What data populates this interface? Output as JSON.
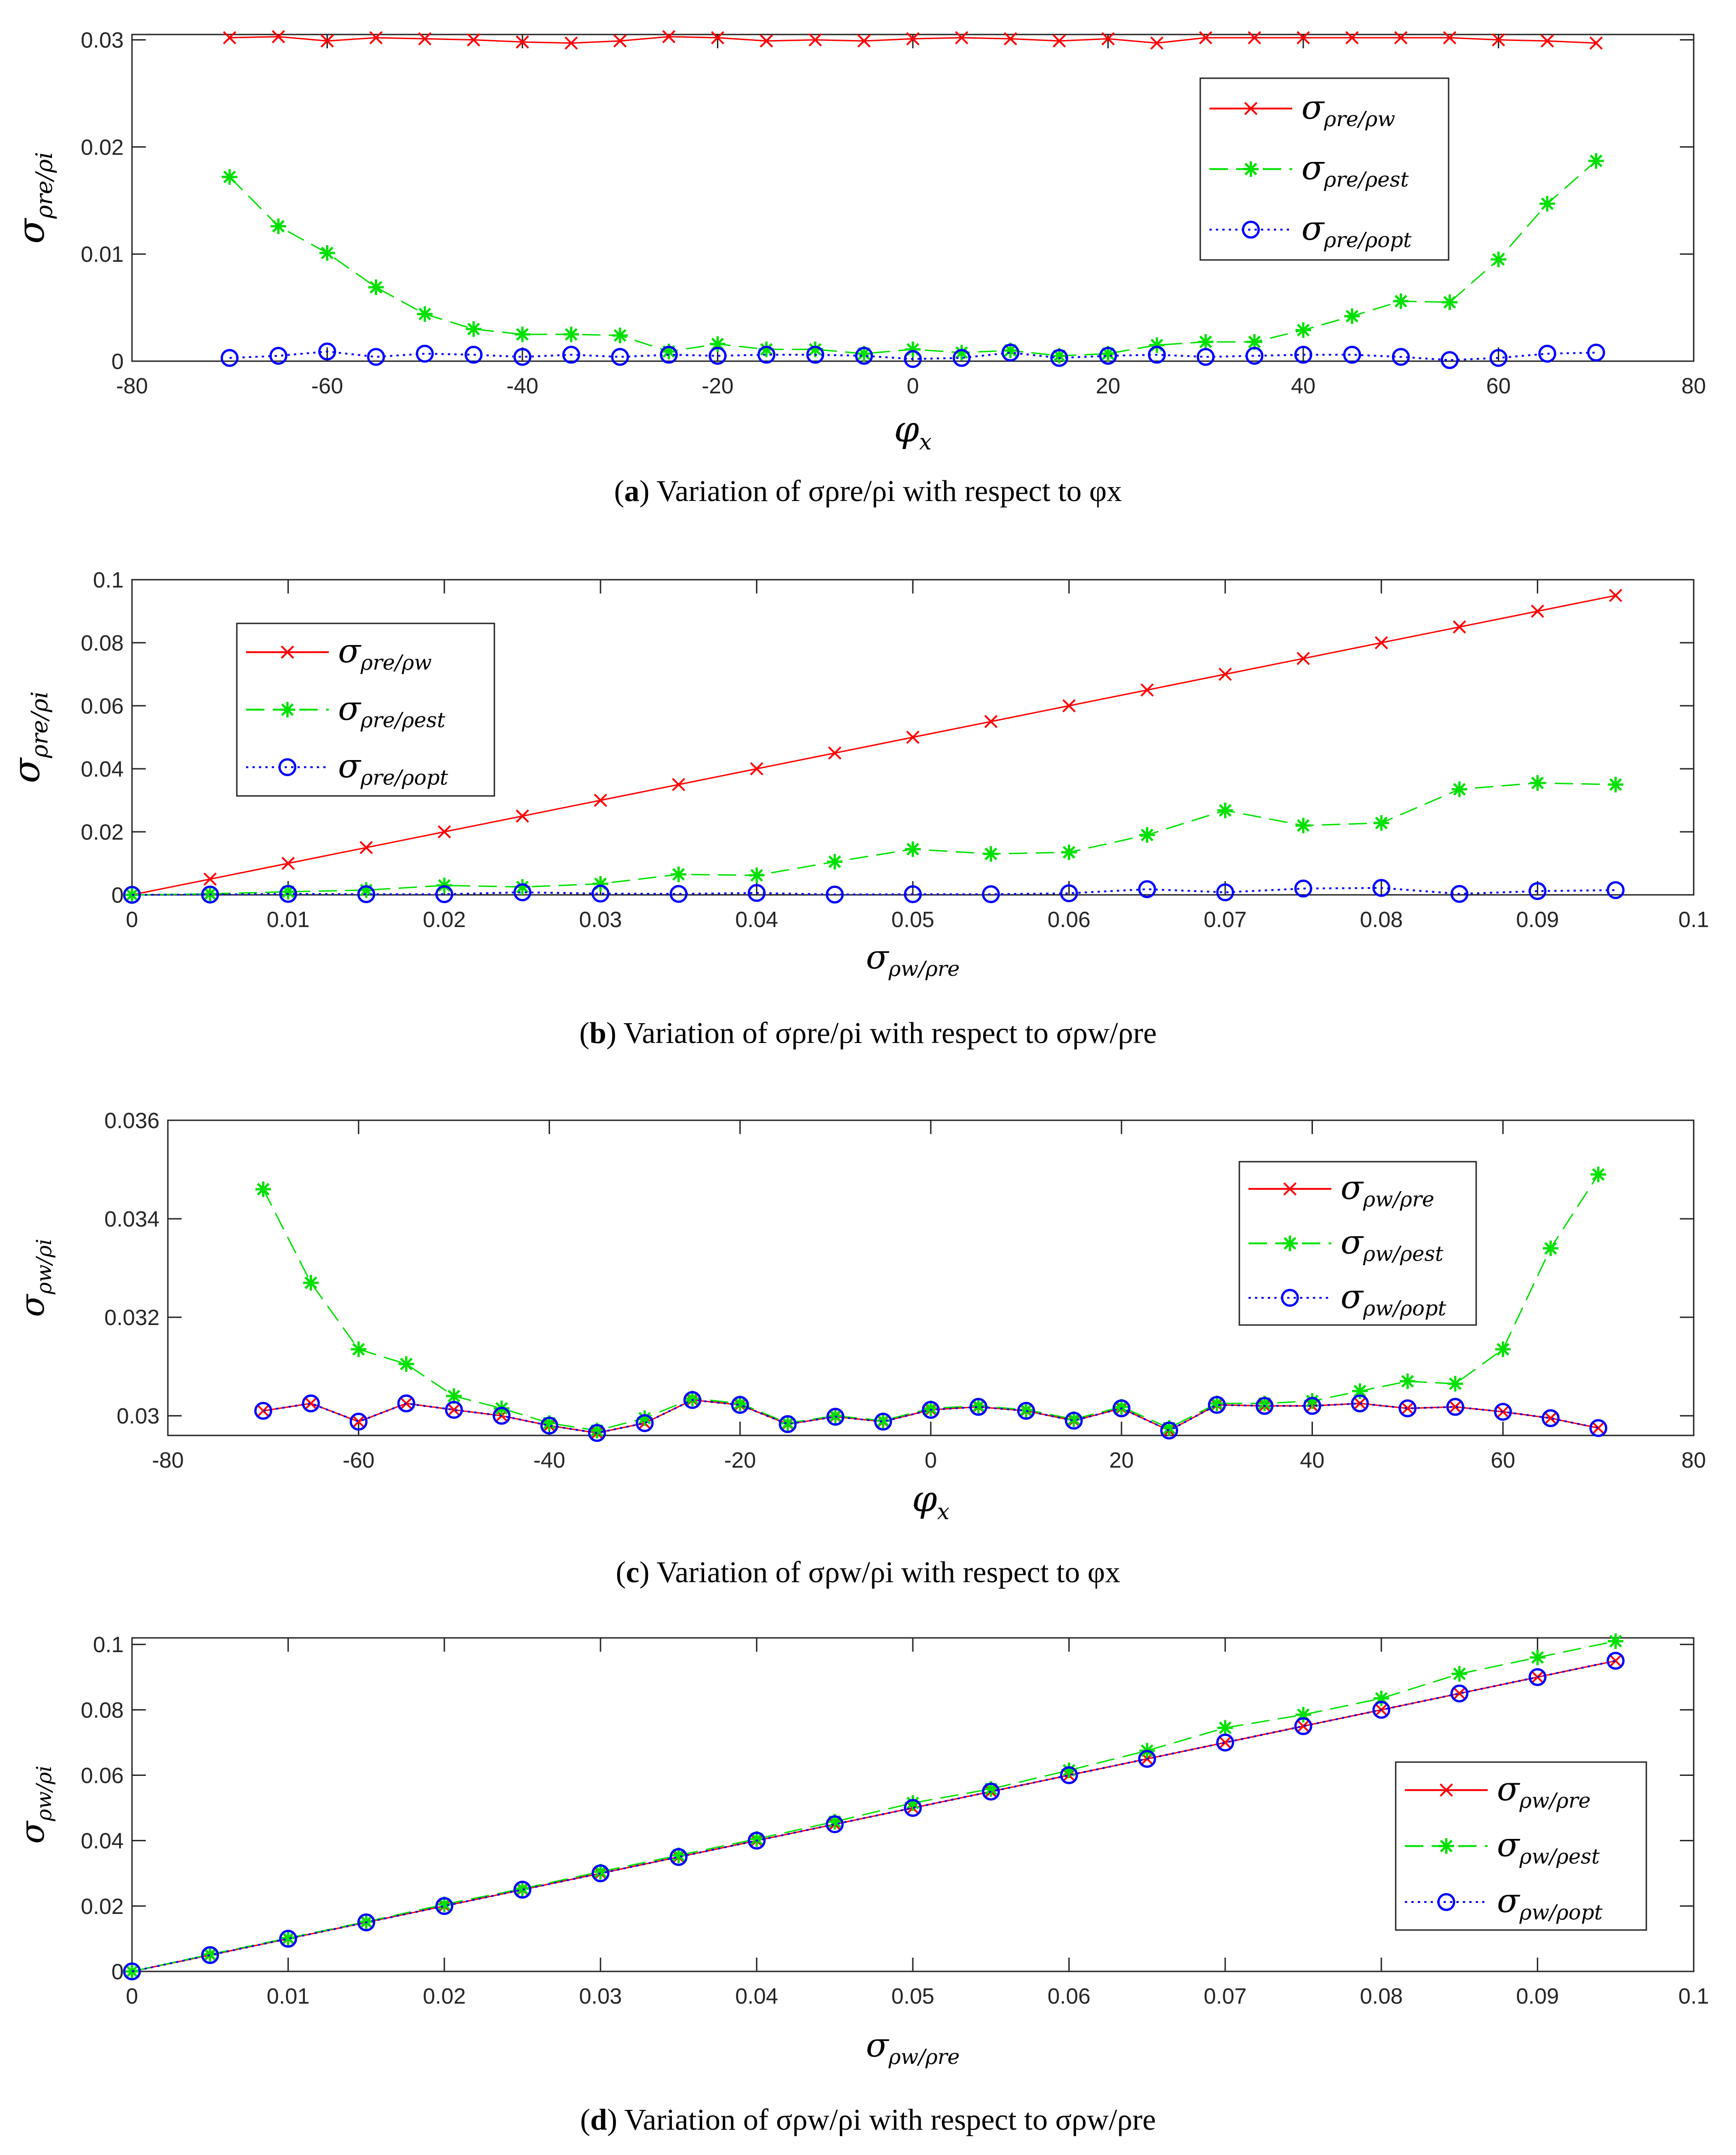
{
  "chart_data": [
    {
      "type": "line",
      "panel": "a",
      "caption_tag": "a",
      "caption": "Variation of σρre/ρi with respect to φx",
      "xlabel": "φx",
      "ylabel": "σρre/ρi",
      "xlim": [
        -80,
        80
      ],
      "ylim": [
        0,
        0.0305
      ],
      "xticks": [
        -80,
        -60,
        -40,
        -20,
        0,
        20,
        40,
        60,
        80
      ],
      "xtick_labels": [
        "-80",
        "-60",
        "-40",
        "-20",
        "0",
        "20",
        "40",
        "60",
        "80"
      ],
      "yticks": [
        0,
        0.01,
        0.02,
        0.03
      ],
      "ytick_labels": [
        "0",
        "0.01",
        "0.02",
        "0.03"
      ],
      "legend_location": "upper-right",
      "x": [
        -70,
        -65,
        -60,
        -55,
        -50,
        -45,
        -40,
        -35,
        -30,
        -25,
        -20,
        -15,
        -10,
        -5,
        0,
        5,
        10,
        15,
        20,
        25,
        30,
        35,
        40,
        45,
        50,
        55,
        60,
        65,
        70
      ],
      "series": [
        {
          "name": "σρre/ρw",
          "color": "#ff0000",
          "marker": "x",
          "dash": "solid",
          "values": [
            0.0302,
            0.0303,
            0.0299,
            0.0302,
            0.0301,
            0.03,
            0.0298,
            0.0297,
            0.0299,
            0.0303,
            0.0302,
            0.0299,
            0.03,
            0.0299,
            0.0301,
            0.0302,
            0.0301,
            0.0299,
            0.0301,
            0.0297,
            0.0302,
            0.0302,
            0.0302,
            0.0302,
            0.0302,
            0.0302,
            0.03,
            0.0299,
            0.0297
          ]
        },
        {
          "name": "σρre/ρest",
          "color": "#00e000",
          "marker": "*",
          "dash": "dashed",
          "values": [
            0.0172,
            0.0126,
            0.0101,
            0.0069,
            0.0044,
            0.003,
            0.0025,
            0.0025,
            0.0024,
            0.0009,
            0.0016,
            0.0011,
            0.0011,
            0.0007,
            0.0011,
            0.0008,
            0.001,
            0.0005,
            0.0007,
            0.0015,
            0.0018,
            0.0018,
            0.0029,
            0.0042,
            0.0056,
            0.0055,
            0.0095,
            0.0147,
            0.0187
          ]
        },
        {
          "name": "σρre/ρopt",
          "color": "#0000ff",
          "marker": "o",
          "dash": "dotted",
          "values": [
            0.0003,
            0.0005,
            0.0009,
            0.0004,
            0.0007,
            0.0006,
            0.0004,
            0.0006,
            0.0004,
            0.0006,
            0.0005,
            0.0006,
            0.0006,
            0.0005,
            0.0002,
            0.0003,
            0.0008,
            0.0003,
            0.0005,
            0.0006,
            0.0004,
            0.0005,
            0.0006,
            0.0006,
            0.0004,
            0.0001,
            0.0003,
            0.0007,
            0.0008
          ]
        }
      ]
    },
    {
      "type": "line",
      "panel": "b",
      "caption_tag": "b",
      "caption": "Variation of σρre/ρi with respect to σρw/ρre",
      "xlabel": "σρw/ρre",
      "ylabel": "σρre/ρi",
      "xlim": [
        0,
        0.1
      ],
      "ylim": [
        0,
        0.1
      ],
      "xticks": [
        0,
        0.01,
        0.02,
        0.03,
        0.04,
        0.05,
        0.06,
        0.07,
        0.08,
        0.09,
        0.1
      ],
      "xtick_labels": [
        "0",
        "0.01",
        "0.02",
        "0.03",
        "0.04",
        "0.05",
        "0.06",
        "0.07",
        "0.08",
        "0.09",
        "0.1"
      ],
      "yticks": [
        0,
        0.02,
        0.04,
        0.06,
        0.08,
        0.1
      ],
      "ytick_labels": [
        "0",
        "0.02",
        "0.04",
        "0.06",
        "0.08",
        "0.1"
      ],
      "legend_location": "upper-left",
      "x": [
        0,
        0.005,
        0.01,
        0.015,
        0.02,
        0.025,
        0.03,
        0.035,
        0.04,
        0.045,
        0.05,
        0.055,
        0.06,
        0.065,
        0.07,
        0.075,
        0.08,
        0.085,
        0.09,
        0.095
      ],
      "series": [
        {
          "name": "σρre/ρw",
          "color": "#ff0000",
          "marker": "x",
          "dash": "solid",
          "values": [
            0,
            0.005,
            0.01,
            0.015,
            0.02,
            0.025,
            0.03,
            0.035,
            0.04,
            0.045,
            0.05,
            0.055,
            0.06,
            0.065,
            0.07,
            0.075,
            0.08,
            0.085,
            0.09,
            0.095
          ]
        },
        {
          "name": "σρre/ρest",
          "color": "#00e000",
          "marker": "*",
          "dash": "dashed",
          "values": [
            0,
            0.0003,
            0.001,
            0.0015,
            0.003,
            0.0025,
            0.0035,
            0.0065,
            0.0062,
            0.0105,
            0.0145,
            0.013,
            0.0135,
            0.019,
            0.0268,
            0.022,
            0.0228,
            0.0335,
            0.0355,
            0.035
          ]
        },
        {
          "name": "σρre/ρopt",
          "color": "#0000ff",
          "marker": "o",
          "dash": "dotted",
          "values": [
            0,
            0.0001,
            0.0003,
            0.0002,
            0.0002,
            0.0008,
            0.0004,
            0.0003,
            0.0006,
            0.0001,
            0.0002,
            0.0002,
            0.0005,
            0.0018,
            0.0008,
            0.002,
            0.0022,
            0.0003,
            0.0012,
            0.0015
          ]
        }
      ]
    },
    {
      "type": "line",
      "panel": "c",
      "caption_tag": "c",
      "caption": "Variation of σρw/ρi with respect to φx",
      "xlabel": "φx",
      "ylabel": "σρw/ρi",
      "xlim": [
        -80,
        80
      ],
      "ylim": [
        0.0296,
        0.036
      ],
      "xticks": [
        -80,
        -60,
        -40,
        -20,
        0,
        20,
        40,
        60,
        80
      ],
      "xtick_labels": [
        "-80",
        "-60",
        "-40",
        "-20",
        "0",
        "20",
        "40",
        "60",
        "80"
      ],
      "yticks": [
        0.03,
        0.032,
        0.034,
        0.036
      ],
      "ytick_labels": [
        "0.03",
        "0.032",
        "0.034",
        "0.036"
      ],
      "legend_location": "upper-right",
      "x": [
        -70,
        -65,
        -60,
        -55,
        -50,
        -45,
        -40,
        -35,
        -30,
        -25,
        -20,
        -15,
        -10,
        -5,
        0,
        5,
        10,
        15,
        20,
        25,
        30,
        35,
        40,
        45,
        50,
        55,
        60,
        65,
        70
      ],
      "series": [
        {
          "name": "σρw/ρre",
          "color": "#ff0000",
          "marker": "x",
          "dash": "solid",
          "values": [
            0.0301,
            0.03025,
            0.02988,
            0.03025,
            0.03012,
            0.03,
            0.0298,
            0.02965,
            0.02985,
            0.03032,
            0.03022,
            0.02983,
            0.02998,
            0.02988,
            0.03012,
            0.03018,
            0.0301,
            0.0299,
            0.03015,
            0.0297,
            0.03022,
            0.0302,
            0.0302,
            0.03025,
            0.03015,
            0.03018,
            0.03008,
            0.02995,
            0.02975
          ]
        },
        {
          "name": "σρw/ρest",
          "color": "#00e000",
          "marker": "*",
          "dash": "dashed",
          "values": [
            0.0346,
            0.0327,
            0.03135,
            0.03105,
            0.0304,
            0.03015,
            0.02985,
            0.0297,
            0.02995,
            0.03035,
            0.03025,
            0.02985,
            0.03,
            0.0299,
            0.03015,
            0.0302,
            0.03012,
            0.02993,
            0.03018,
            0.02975,
            0.03025,
            0.03025,
            0.0303,
            0.0305,
            0.0307,
            0.03065,
            0.03135,
            0.0334,
            0.0349
          ]
        },
        {
          "name": "σρw/ρopt",
          "color": "#0000ff",
          "marker": "o",
          "dash": "dotted",
          "values": [
            0.0301,
            0.03025,
            0.02988,
            0.03025,
            0.03012,
            0.03,
            0.0298,
            0.02965,
            0.02985,
            0.03032,
            0.03022,
            0.02983,
            0.02998,
            0.02988,
            0.03012,
            0.03018,
            0.0301,
            0.0299,
            0.03015,
            0.0297,
            0.03022,
            0.0302,
            0.0302,
            0.03025,
            0.03015,
            0.03018,
            0.03008,
            0.02995,
            0.02975
          ]
        }
      ]
    },
    {
      "type": "line",
      "panel": "d",
      "caption_tag": "d",
      "caption": "Variation of σρw/ρi with respect to σρw/ρre",
      "xlabel": "σρw/ρre",
      "ylabel": "σρw/ρi",
      "xlim": [
        0,
        0.1
      ],
      "ylim": [
        0,
        0.102
      ],
      "xticks": [
        0,
        0.01,
        0.02,
        0.03,
        0.04,
        0.05,
        0.06,
        0.07,
        0.08,
        0.09,
        0.1
      ],
      "xtick_labels": [
        "0",
        "0.01",
        "0.02",
        "0.03",
        "0.04",
        "0.05",
        "0.06",
        "0.07",
        "0.08",
        "0.09",
        "0.1"
      ],
      "yticks": [
        0,
        0.02,
        0.04,
        0.06,
        0.08,
        0.1
      ],
      "ytick_labels": [
        "0",
        "0.02",
        "0.04",
        "0.06",
        "0.08",
        "0.1"
      ],
      "legend_location": "lower-right",
      "x": [
        0,
        0.005,
        0.01,
        0.015,
        0.02,
        0.025,
        0.03,
        0.035,
        0.04,
        0.045,
        0.05,
        0.055,
        0.06,
        0.065,
        0.07,
        0.075,
        0.08,
        0.085,
        0.09,
        0.095
      ],
      "series": [
        {
          "name": "σρw/ρre",
          "color": "#ff0000",
          "marker": "x",
          "dash": "solid",
          "values": [
            0,
            0.005,
            0.01,
            0.015,
            0.02,
            0.025,
            0.03,
            0.035,
            0.04,
            0.045,
            0.05,
            0.055,
            0.06,
            0.065,
            0.07,
            0.075,
            0.08,
            0.085,
            0.09,
            0.095
          ]
        },
        {
          "name": "σρw/ρest",
          "color": "#00e000",
          "marker": "*",
          "dash": "dashed",
          "values": [
            0,
            0.0052,
            0.0102,
            0.0152,
            0.0205,
            0.0253,
            0.0305,
            0.0355,
            0.0405,
            0.0458,
            0.0515,
            0.0558,
            0.0615,
            0.0675,
            0.0745,
            0.0785,
            0.0835,
            0.091,
            0.096,
            0.101
          ]
        },
        {
          "name": "σρw/ρopt",
          "color": "#0000ff",
          "marker": "o",
          "dash": "dotted",
          "values": [
            0,
            0.005,
            0.01,
            0.015,
            0.02,
            0.025,
            0.03,
            0.035,
            0.04,
            0.045,
            0.05,
            0.055,
            0.06,
            0.065,
            0.07,
            0.075,
            0.08,
            0.085,
            0.09,
            0.095
          ]
        }
      ]
    }
  ]
}
